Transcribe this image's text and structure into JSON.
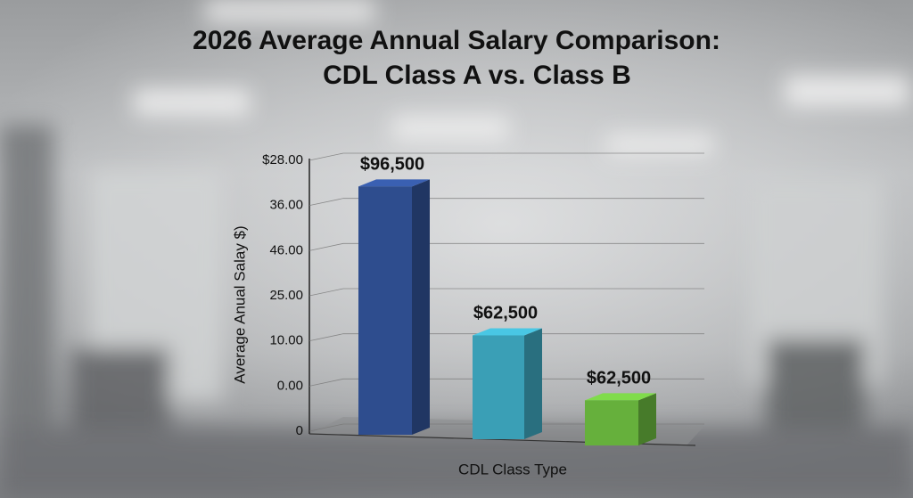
{
  "chart_data": {
    "type": "bar3d",
    "title": "2026 Average Annual Salary Comparison:",
    "subtitle": "CDL Class A vs. Class B",
    "y_label": "Average Anual Salay $)",
    "x_label": "CDL Class Type",
    "values": [
      5.5,
      2.3,
      1.0
    ],
    "colors": [
      "#2e4d8e",
      "#3a9fb6",
      "#66b03c"
    ],
    "annotations": [
      "$96,500",
      "$62,500",
      "$62,500"
    ],
    "ylim": [
      0,
      6
    ],
    "yticks": [
      {
        "value": 0,
        "label": "0"
      },
      {
        "value": 1,
        "label": "0.00"
      },
      {
        "value": 2,
        "label": "10.00"
      },
      {
        "value": 3,
        "label": "25.00"
      },
      {
        "value": 4,
        "label": "46.00"
      },
      {
        "value": 5,
        "label": "36.00"
      },
      {
        "value": 6,
        "label": "$28.00"
      }
    ],
    "grid": true
  }
}
